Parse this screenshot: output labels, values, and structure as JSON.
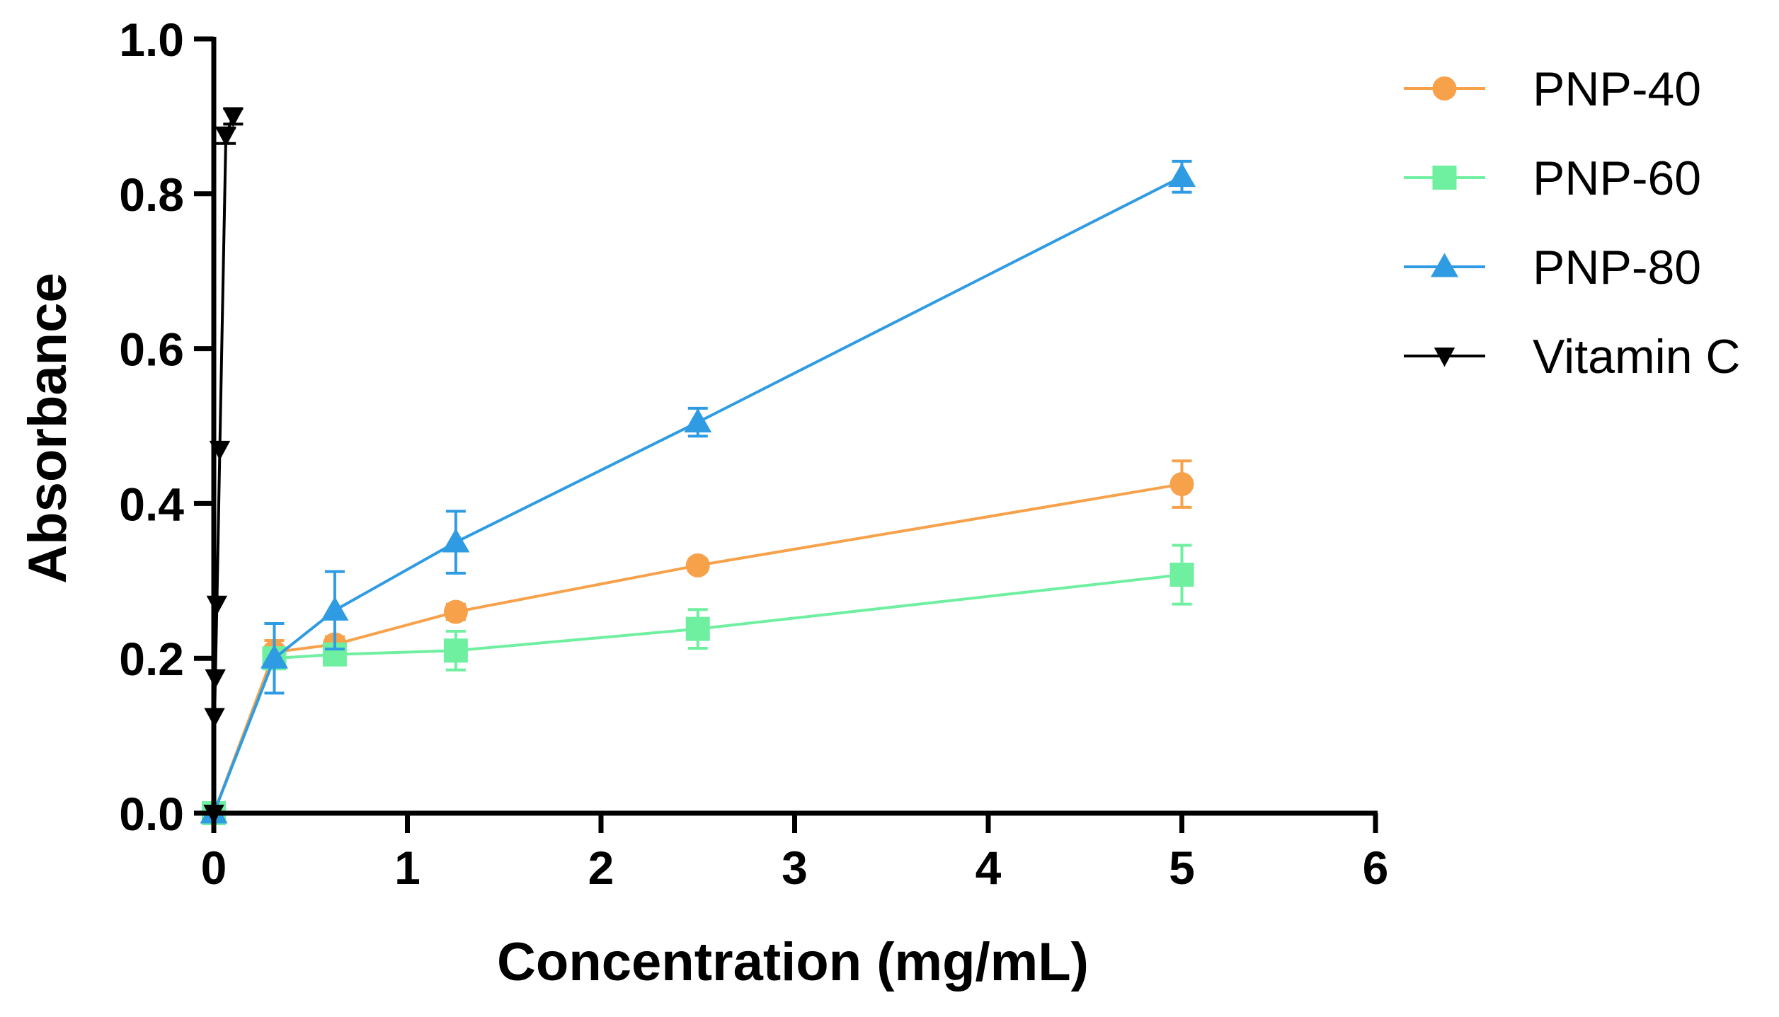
{
  "chart_data": {
    "type": "line",
    "title": "",
    "xlabel": "Concentration (mg/mL)",
    "ylabel": "Absorbance",
    "xlim": [
      0,
      6
    ],
    "ylim": [
      0,
      1.0
    ],
    "x_ticks": [
      "0",
      "1",
      "2",
      "3",
      "4",
      "5",
      "6"
    ],
    "y_ticks": [
      "0.0",
      "0.2",
      "0.4",
      "0.6",
      "0.8",
      "1.0"
    ],
    "legend_position": "top-right",
    "series": [
      {
        "name": "PNP-40",
        "color": "#F7A14B",
        "marker": "circle",
        "x": [
          0,
          0.3125,
          0.625,
          1.25,
          2.5,
          5
        ],
        "y": [
          0,
          0.208,
          0.218,
          0.26,
          0.32,
          0.425
        ],
        "err": [
          0,
          0.015,
          0.01,
          0.01,
          0.008,
          0.03
        ]
      },
      {
        "name": "PNP-60",
        "color": "#6FEFA0",
        "marker": "square",
        "x": [
          0,
          0.3125,
          0.625,
          1.25,
          2.5,
          5
        ],
        "y": [
          0,
          0.2,
          0.205,
          0.21,
          0.238,
          0.308
        ],
        "err": [
          0,
          0.012,
          0.012,
          0.025,
          0.025,
          0.038
        ]
      },
      {
        "name": "PNP-80",
        "color": "#2F9BE3",
        "marker": "triangle-up",
        "x": [
          0,
          0.3125,
          0.625,
          1.25,
          2.5,
          5
        ],
        "y": [
          0,
          0.2,
          0.262,
          0.35,
          0.505,
          0.822
        ],
        "err": [
          0,
          0.045,
          0.05,
          0.04,
          0.018,
          0.02
        ]
      },
      {
        "name": "Vitamin C",
        "color": "#000000",
        "marker": "triangle-down",
        "x": [
          0,
          0.004,
          0.008,
          0.016,
          0.031,
          0.0625,
          0.1
        ],
        "y": [
          0,
          0.125,
          0.175,
          0.27,
          0.47,
          0.875,
          0.9
        ],
        "err": [
          0,
          0,
          0,
          0,
          0,
          0.01,
          0.01
        ]
      }
    ]
  }
}
